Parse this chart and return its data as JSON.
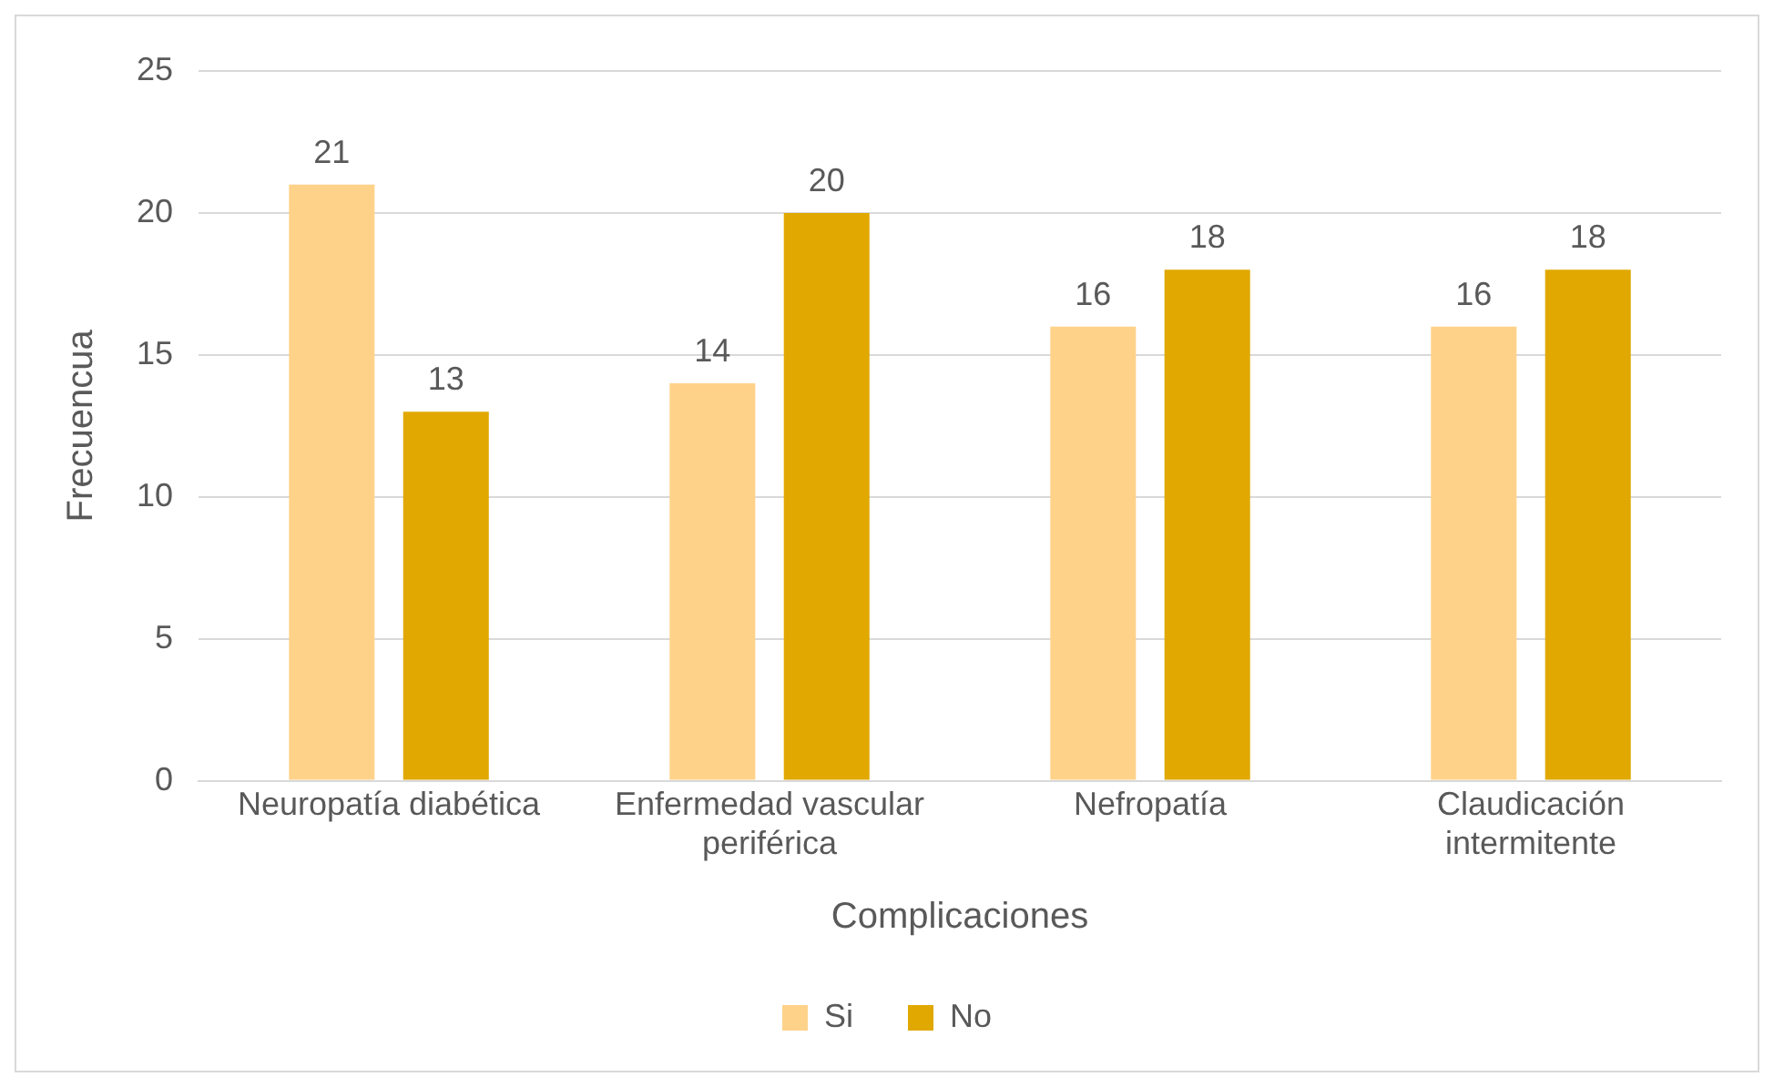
{
  "chart_data": {
    "type": "bar",
    "xlabel": "Complicaciones",
    "ylabel": "Frecuencua",
    "categories": [
      "Neuropatía diabética",
      "Enfermedad vascular periférica",
      "Nefropatía",
      "Claudicación intermitente"
    ],
    "series": [
      {
        "name": "Si",
        "color": "#ffd28a",
        "values": [
          21,
          14,
          16,
          16
        ]
      },
      {
        "name": "No",
        "color": "#e0a800",
        "values": [
          13,
          20,
          18,
          18
        ]
      }
    ],
    "ylim": [
      0,
      25
    ],
    "yticks": [
      0,
      5,
      10,
      15,
      20,
      25
    ],
    "grid": "y",
    "legend": "bottom",
    "data_labels": true
  }
}
